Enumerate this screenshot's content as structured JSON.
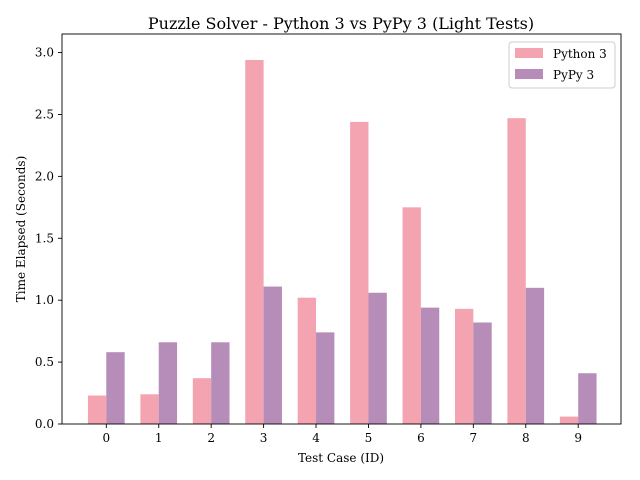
{
  "chart_data": {
    "type": "bar",
    "title": "Puzzle Solver - Python 3 vs PyPy 3 (Light Tests)",
    "xlabel": "Test Case (ID)",
    "ylabel": "Time Elapsed (Seconds)",
    "categories": [
      "0",
      "1",
      "2",
      "3",
      "4",
      "5",
      "6",
      "7",
      "8",
      "9"
    ],
    "series": [
      {
        "name": "Python 3",
        "color": "#f4a3b0",
        "values": [
          0.23,
          0.24,
          0.37,
          2.94,
          1.02,
          2.44,
          1.75,
          0.93,
          2.47,
          0.06
        ]
      },
      {
        "name": "PyPy 3",
        "color": "#b68cb8",
        "values": [
          0.58,
          0.66,
          0.66,
          1.11,
          0.74,
          1.06,
          0.94,
          0.82,
          1.1,
          0.41
        ]
      }
    ],
    "ylim": [
      0,
      3.15
    ],
    "yticks": [
      "0.0",
      "0.5",
      "1.0",
      "1.5",
      "2.0",
      "2.5",
      "3.0"
    ],
    "legend": "top-right",
    "grid": false
  }
}
